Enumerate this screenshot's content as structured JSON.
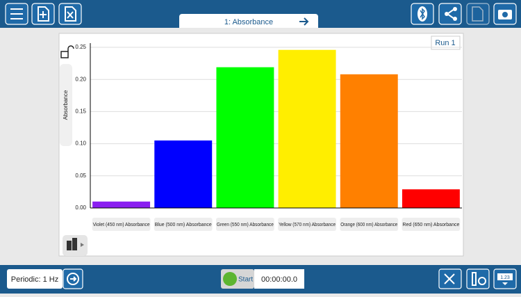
{
  "tab_title": "1: Absorbance",
  "run_label": "Run 1",
  "footer": {
    "mode": "Periodic: 1 Hz",
    "start": "Start",
    "time": "00:00:00.0",
    "readout_button": "1.23"
  },
  "chart_data": {
    "type": "bar",
    "y_label": "Absorbance",
    "categories": [
      "Violet (450 nm) Absorbance",
      "Blue (500 nm) Absorbance",
      "Green (550 nm) Absorbance",
      "Yellow (570 nm) Absorbance",
      "Orange (600 nm) Absorbance",
      "Red (650 nm) Absorbance"
    ],
    "values": [
      0.01,
      0.105,
      0.219,
      0.246,
      0.208,
      0.029
    ],
    "colors": [
      "#8a1ff0",
      "#0000ff",
      "#00ff00",
      "#ffee00",
      "#ff8000",
      "#ff0000"
    ],
    "ylim": [
      0,
      0.2565
    ],
    "yticks": [
      {
        "value": 0,
        "label": "0.00"
      },
      0.05,
      {
        "value": 0.1,
        "label": "0.10"
      },
      0.15,
      {
        "value": 0.2,
        "label": "0.20"
      },
      0.25
    ],
    "grid": true
  }
}
